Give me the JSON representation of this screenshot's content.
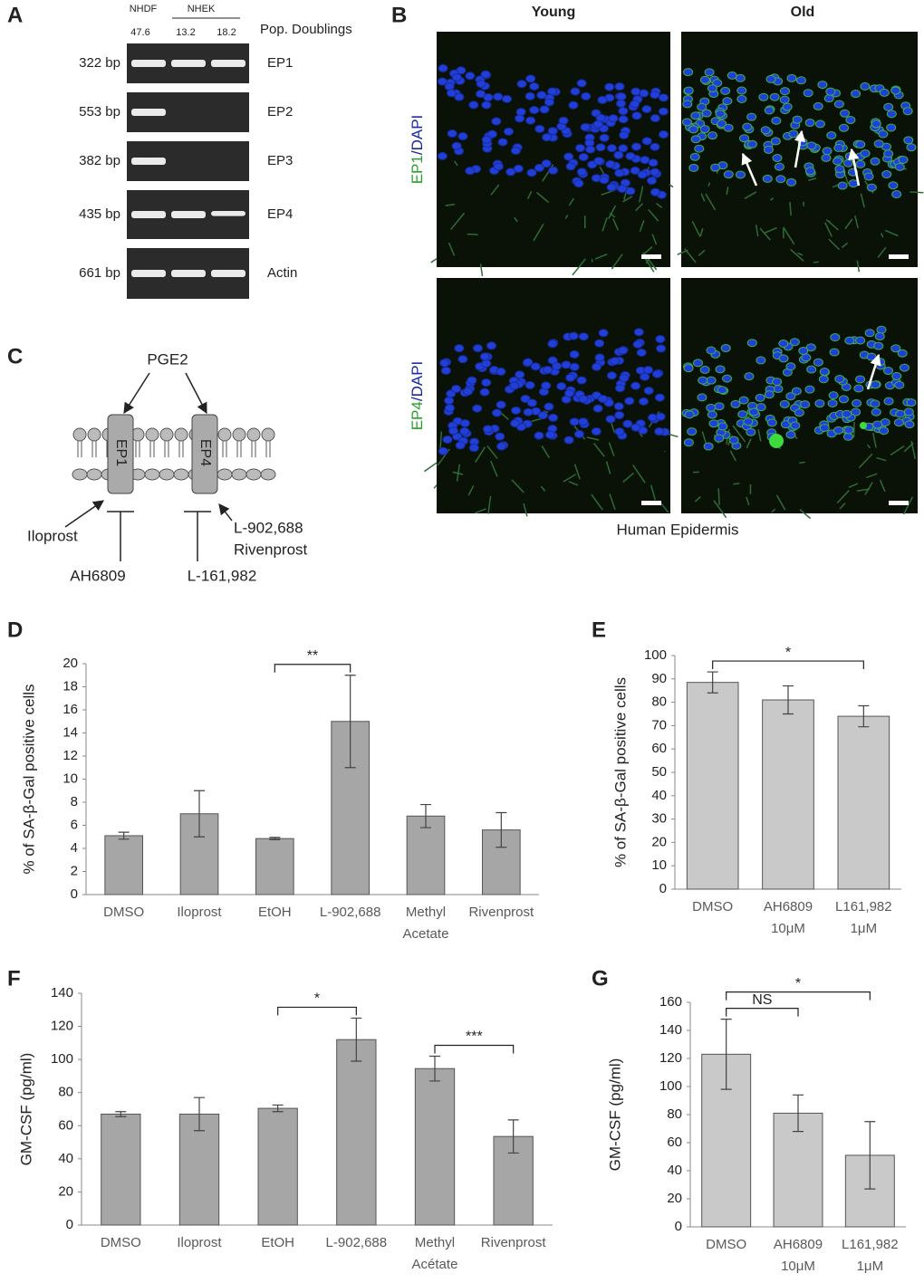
{
  "panels": {
    "A": {
      "label": "A",
      "groups": [
        "NHDF",
        "NHEK"
      ],
      "pop_doublings": [
        47.6,
        13.2,
        18.2
      ],
      "pop_doublings_label": "Pop. Doublings",
      "rows": [
        {
          "size": "322 bp",
          "gene": "EP1"
        },
        {
          "size": "553 bp",
          "gene": "EP2"
        },
        {
          "size": "382 bp",
          "gene": "EP3"
        },
        {
          "size": "435 bp",
          "gene": "EP4"
        },
        {
          "size": "661 bp",
          "gene": "Actin"
        }
      ]
    },
    "B": {
      "label": "B",
      "columns": [
        "Young",
        "Old"
      ],
      "rows": [
        {
          "marker": "EP1",
          "stain": "/DAPI"
        },
        {
          "marker": "EP4",
          "stain": "/DAPI"
        }
      ],
      "caption": "Human Epidermis"
    },
    "C": {
      "label": "C",
      "ligand": "PGE2",
      "receptors": [
        "EP1",
        "EP4"
      ],
      "agonists": [
        "Iloprost",
        "L-902,688",
        "Rivenprost"
      ],
      "antagonists": [
        "AH6809",
        "L-161,982"
      ]
    }
  },
  "chart_data": [
    {
      "type": "bar",
      "panel_label": "D",
      "y_label": "% of SA-β-Gal positive cells",
      "categories": [
        "DMSO",
        "Iloprost",
        "EtOH",
        "L-902,688",
        "Methyl Acetate",
        "Rivenprost"
      ],
      "values": [
        5.1,
        7.0,
        4.85,
        15.0,
        6.8,
        5.6
      ],
      "errors": [
        0.3,
        2.0,
        0.1,
        4.0,
        1.0,
        1.5
      ],
      "color": "#a6a6a6",
      "ylim": [
        0,
        20
      ],
      "yticks": [
        0,
        2,
        4,
        6,
        8,
        10,
        12,
        14,
        16,
        18,
        20
      ],
      "annotations": [
        {
          "text": "**",
          "between": [
            "EtOH",
            "L-902,688"
          ]
        }
      ]
    },
    {
      "type": "bar",
      "panel_label": "E",
      "y_label": "% of SA-β-Gal positive cells",
      "categories": [
        "DMSO",
        "AH6809 10μM",
        "L161,982 1μM"
      ],
      "values": [
        88.5,
        81,
        74
      ],
      "errors": [
        4.5,
        6,
        4.5
      ],
      "color": "#c9c9c9",
      "ylim": [
        0,
        100
      ],
      "yticks": [
        0,
        10,
        20,
        30,
        40,
        50,
        60,
        70,
        80,
        90,
        100
      ],
      "annotations": [
        {
          "text": "*",
          "between": [
            "DMSO",
            "L161,982 1μM"
          ]
        }
      ]
    },
    {
      "type": "bar",
      "panel_label": "F",
      "y_label": "GM-CSF (pg/ml)",
      "categories": [
        "DMSO",
        "Iloprost",
        "EtOH",
        "L-902,688",
        "Methyl Acétate",
        "Rivenprost"
      ],
      "values": [
        67,
        67,
        70.5,
        112,
        94.5,
        53.5
      ],
      "errors": [
        1.5,
        10,
        2,
        13,
        7.5,
        10
      ],
      "color": "#a6a6a6",
      "ylim": [
        0,
        140
      ],
      "yticks": [
        0,
        20,
        40,
        60,
        80,
        100,
        120,
        140
      ],
      "annotations": [
        {
          "text": "*",
          "between": [
            "EtOH",
            "L-902,688"
          ]
        },
        {
          "text": "***",
          "between": [
            "Methyl Acétate",
            "Rivenprost"
          ]
        }
      ]
    },
    {
      "type": "bar",
      "panel_label": "G",
      "y_label": "GM-CSF (pg/ml)",
      "categories": [
        "DMSO",
        "AH6809 10μM",
        "L161,982 1μM"
      ],
      "values": [
        123,
        81,
        51
      ],
      "errors": [
        25,
        13,
        24
      ],
      "color": "#c9c9c9",
      "ylim": [
        0,
        160
      ],
      "yticks": [
        0,
        20,
        40,
        60,
        80,
        100,
        120,
        140,
        160
      ],
      "annotations": [
        {
          "text": "NS",
          "between": [
            "DMSO",
            "AH6809 10μM"
          ]
        },
        {
          "text": "*",
          "between": [
            "DMSO",
            "L161,982 1μM"
          ]
        }
      ]
    }
  ]
}
